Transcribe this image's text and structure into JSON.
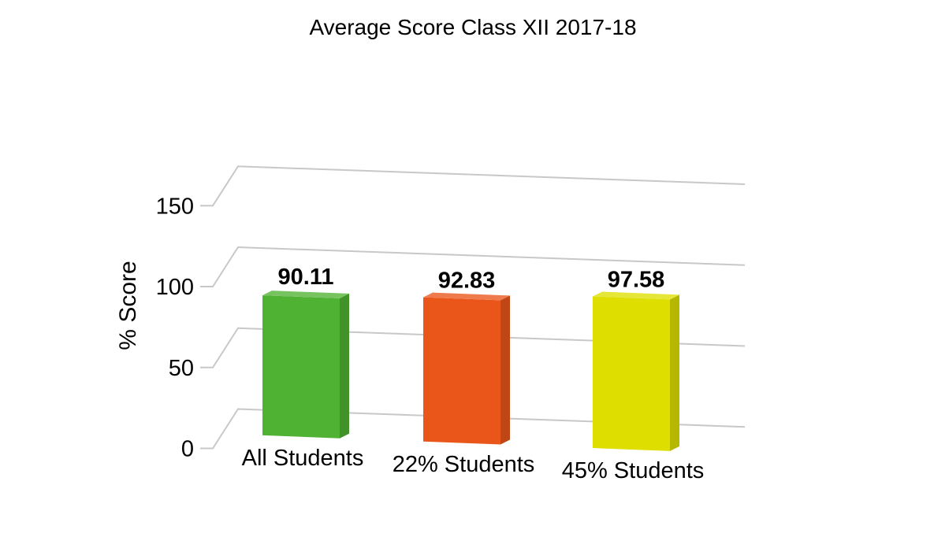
{
  "chart_data": {
    "type": "bar",
    "title": "Average Score Class XII 2017-18",
    "xlabel": "",
    "ylabel": "% Score",
    "categories": [
      "All Students",
      "22% Students",
      "45% Students"
    ],
    "series": [
      {
        "values": [
          90.11,
          92.83,
          97.58
        ],
        "value_labels": [
          "90.11",
          "92.83",
          "97.58"
        ]
      }
    ],
    "yticks": [
      0,
      50,
      100,
      150
    ],
    "ytick_labels": [
      "0",
      "50",
      "100",
      "150"
    ],
    "ylim": [
      0,
      150
    ],
    "grid": true,
    "legend": "none",
    "colors": [
      "#4fb232",
      "#ea5519",
      "#dedf00"
    ]
  }
}
